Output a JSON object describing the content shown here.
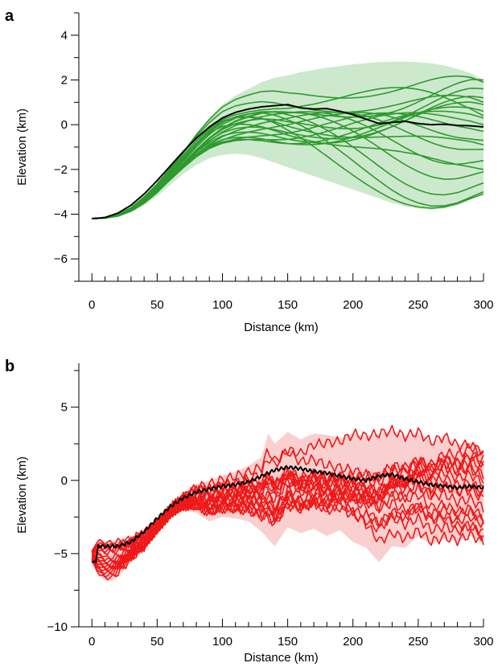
{
  "chart_data": [
    {
      "panel": "a",
      "type": "line",
      "xlabel": "Distance (km)",
      "ylabel": "Elevation (km)",
      "xlim": [
        -10,
        300
      ],
      "ylim": [
        -7,
        5
      ],
      "xticks": [
        0,
        50,
        100,
        150,
        200,
        250,
        300
      ],
      "yticks": [
        -6,
        -4,
        -2,
        0,
        2,
        4
      ],
      "colors": {
        "series": "#2e9a2e",
        "band": "#cde9cd",
        "median": "#000000"
      },
      "band_upper": {
        "x": [
          0,
          10,
          20,
          30,
          40,
          50,
          60,
          70,
          80,
          90,
          100,
          110,
          120,
          130,
          140,
          150,
          160,
          170,
          180,
          190,
          200,
          210,
          220,
          230,
          240,
          250,
          260,
          270,
          280,
          290,
          300
        ],
        "y": [
          -4.2,
          -4.15,
          -4.0,
          -3.7,
          -3.2,
          -2.6,
          -1.9,
          -1.2,
          -0.4,
          0.3,
          0.9,
          1.3,
          1.6,
          1.9,
          2.1,
          2.2,
          2.35,
          2.45,
          2.55,
          2.62,
          2.7,
          2.75,
          2.8,
          2.82,
          2.82,
          2.8,
          2.75,
          2.65,
          2.5,
          2.3,
          2.0
        ]
      },
      "band_lower": {
        "x": [
          0,
          10,
          20,
          30,
          40,
          50,
          60,
          70,
          80,
          90,
          100,
          110,
          120,
          130,
          140,
          150,
          160,
          170,
          180,
          190,
          200,
          210,
          220,
          230,
          240,
          250,
          260,
          270,
          280,
          290,
          300
        ],
        "y": [
          -4.2,
          -4.18,
          -4.1,
          -3.9,
          -3.6,
          -3.2,
          -2.7,
          -2.2,
          -1.8,
          -1.5,
          -1.35,
          -1.3,
          -1.35,
          -1.5,
          -1.7,
          -1.9,
          -2.1,
          -2.3,
          -2.5,
          -2.7,
          -2.9,
          -3.1,
          -3.3,
          -3.5,
          -3.65,
          -3.75,
          -3.8,
          -3.75,
          -3.6,
          -3.35,
          -3.1
        ]
      },
      "series": [
        {
          "y_end": 2.0,
          "phase": 0.0
        },
        {
          "y_end": 1.6,
          "phase": 0.4
        },
        {
          "y_end": 1.2,
          "phase": 0.9
        },
        {
          "y_end": 0.9,
          "phase": 1.3
        },
        {
          "y_end": 0.6,
          "phase": 1.8
        },
        {
          "y_end": 0.3,
          "phase": 2.2
        },
        {
          "y_end": 0.0,
          "phase": 2.7
        },
        {
          "y_end": -0.3,
          "phase": 3.1
        },
        {
          "y_end": -0.7,
          "phase": 3.6
        },
        {
          "y_end": -1.1,
          "phase": 4.0
        },
        {
          "y_end": -1.6,
          "phase": 4.5
        },
        {
          "y_end": -2.1,
          "phase": 4.9
        },
        {
          "y_end": -2.6,
          "phase": 5.4
        },
        {
          "y_end": -3.0,
          "phase": 5.8
        },
        {
          "y_end": -3.1,
          "phase": 0.2
        },
        {
          "y_end": 1.9,
          "phase": 0.7
        },
        {
          "y_end": 1.0,
          "phase": 1.1
        },
        {
          "y_end": -0.9,
          "phase": 1.6
        },
        {
          "y_end": -2.0,
          "phase": 2.0
        },
        {
          "y_end": 0.4,
          "phase": 2.5
        }
      ],
      "median": {
        "x": [
          0,
          10,
          20,
          30,
          40,
          50,
          60,
          70,
          80,
          90,
          100,
          110,
          120,
          130,
          140,
          150,
          160,
          170,
          180,
          190,
          200,
          210,
          220,
          230,
          240,
          250,
          260,
          270,
          280,
          290,
          300
        ],
        "y": [
          -4.2,
          -4.15,
          -3.95,
          -3.6,
          -3.1,
          -2.5,
          -1.85,
          -1.2,
          -0.6,
          -0.1,
          0.3,
          0.55,
          0.7,
          0.8,
          0.85,
          0.9,
          0.75,
          0.7,
          0.72,
          0.6,
          0.45,
          0.25,
          0.05,
          0.1,
          0.15,
          0.05,
          0.0,
          0.02,
          -0.03,
          -0.05,
          -0.1
        ]
      }
    },
    {
      "panel": "b",
      "type": "line",
      "xlabel": "Distance (km)",
      "ylabel": "Elevation (km)",
      "xlim": [
        -10,
        300
      ],
      "ylim": [
        -10,
        8
      ],
      "xticks": [
        0,
        50,
        100,
        150,
        200,
        250,
        300
      ],
      "yticks": [
        -10,
        -5,
        0,
        5
      ],
      "colors": {
        "series": "#f01818",
        "band": "#f9cfcf",
        "median": "#000000"
      },
      "band_upper": {
        "x": [
          0,
          5,
          10,
          20,
          30,
          40,
          50,
          60,
          70,
          80,
          90,
          100,
          110,
          120,
          130,
          135,
          140,
          150,
          160,
          170,
          180,
          190,
          200,
          210,
          220,
          230,
          240,
          250,
          260,
          270,
          280,
          290,
          300
        ],
        "y": [
          -4.8,
          -4.0,
          -4.2,
          -4.1,
          -4.0,
          -3.5,
          -2.8,
          -1.8,
          -1.0,
          -0.3,
          0.0,
          0.3,
          0.6,
          1.0,
          1.6,
          3.2,
          2.5,
          3.3,
          2.8,
          3.2,
          3.1,
          2.9,
          3.2,
          3.0,
          3.2,
          3.4,
          3.0,
          3.3,
          2.6,
          3.0,
          2.4,
          2.6,
          2.0
        ]
      },
      "band_lower": {
        "x": [
          0,
          5,
          10,
          15,
          20,
          30,
          40,
          50,
          60,
          70,
          80,
          90,
          100,
          110,
          120,
          130,
          140,
          150,
          160,
          170,
          180,
          190,
          200,
          210,
          220,
          230,
          240,
          250,
          260,
          270,
          280,
          290,
          300
        ],
        "y": [
          -5.5,
          -6.5,
          -6.8,
          -6.9,
          -6.6,
          -5.6,
          -4.8,
          -3.6,
          -2.5,
          -2.0,
          -2.2,
          -2.8,
          -2.5,
          -2.6,
          -2.8,
          -3.5,
          -4.5,
          -3.2,
          -3.6,
          -3.3,
          -3.8,
          -3.4,
          -4.2,
          -4.6,
          -5.6,
          -4.5,
          -4.6,
          -3.8,
          -4.4,
          -4.0,
          -4.2,
          -3.8,
          -4.3
        ]
      },
      "series": [
        {
          "y_end": 2.0,
          "phase": 0.0
        },
        {
          "y_end": 1.4,
          "phase": 0.5
        },
        {
          "y_end": 0.9,
          "phase": 1.0
        },
        {
          "y_end": 0.4,
          "phase": 1.5
        },
        {
          "y_end": -0.2,
          "phase": 2.0
        },
        {
          "y_end": -0.8,
          "phase": 2.5
        },
        {
          "y_end": -1.3,
          "phase": 3.0
        },
        {
          "y_end": -1.9,
          "phase": 3.5
        },
        {
          "y_end": -2.5,
          "phase": 4.0
        },
        {
          "y_end": -3.0,
          "phase": 4.5
        },
        {
          "y_end": -3.6,
          "phase": 5.0
        },
        {
          "y_end": -4.2,
          "phase": 5.5
        },
        {
          "y_end": 1.1,
          "phase": 0.3
        },
        {
          "y_end": -1.0,
          "phase": 0.8
        },
        {
          "y_end": -2.8,
          "phase": 1.3
        },
        {
          "y_end": 0.1,
          "phase": 1.8
        },
        {
          "y_end": -3.9,
          "phase": 2.3
        },
        {
          "y_end": 1.7,
          "phase": 2.8
        }
      ],
      "median": {
        "x": [
          0,
          3,
          5,
          10,
          20,
          30,
          40,
          50,
          60,
          70,
          80,
          90,
          100,
          110,
          120,
          130,
          140,
          150,
          160,
          170,
          180,
          190,
          200,
          210,
          220,
          230,
          240,
          250,
          260,
          270,
          280,
          290,
          300
        ],
        "y": [
          -5.6,
          -5.5,
          -4.5,
          -4.5,
          -4.5,
          -4.2,
          -3.5,
          -2.6,
          -1.8,
          -1.2,
          -0.8,
          -0.6,
          -0.4,
          -0.3,
          -0.1,
          0.3,
          0.7,
          0.9,
          0.8,
          0.6,
          0.5,
          0.3,
          0.1,
          0.0,
          0.3,
          0.4,
          0.1,
          -0.1,
          -0.3,
          -0.4,
          -0.5,
          -0.4,
          -0.5
        ]
      }
    }
  ]
}
